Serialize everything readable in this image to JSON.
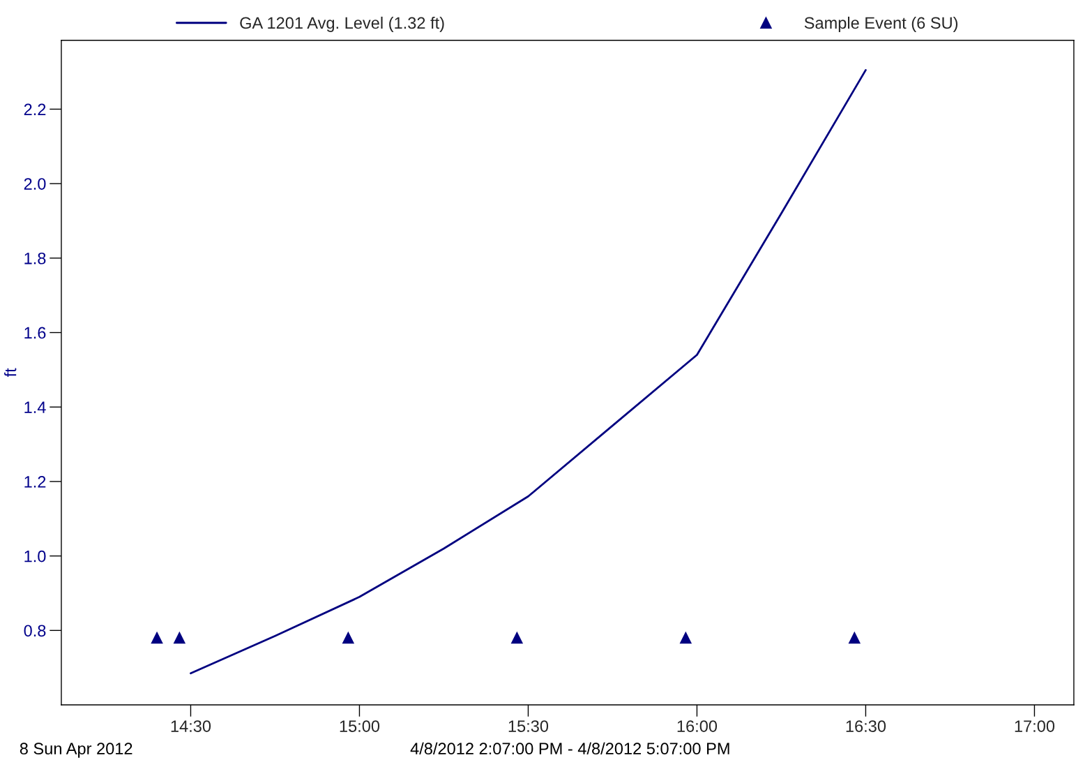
{
  "chart_data": {
    "type": "line",
    "ylabel": "ft",
    "annotations": [
      "8 Sun Apr 2012",
      "4/8/2012 2:07:00 PM - 4/8/2012 5:07:00 PM"
    ],
    "series": [
      {
        "name": "GA 1201 Avg. Level (1.32 ft)",
        "color": "#000080",
        "marker": "none",
        "x": [
          14.5,
          14.75,
          15.0,
          15.25,
          15.5,
          15.75,
          16.0,
          16.25,
          16.5
        ],
        "values": [
          0.685,
          0.785,
          0.89,
          1.02,
          1.16,
          1.35,
          1.54,
          1.92,
          2.305
        ]
      },
      {
        "name": "Sample Event (6 SU)",
        "type": "scatter",
        "color": "#000080",
        "marker": "triangle",
        "x": [
          14.4,
          14.4667,
          14.9667,
          15.4667,
          15.9667,
          16.4667
        ],
        "values": [
          0.78,
          0.78,
          0.78,
          0.78,
          0.78,
          0.78
        ]
      }
    ],
    "xlim": [
      14.1167,
      17.1167
    ],
    "xticks": [
      {
        "value": 14.5,
        "label": "14:30"
      },
      {
        "value": 15.0,
        "label": "15:00"
      },
      {
        "value": 15.5,
        "label": "15:30"
      },
      {
        "value": 16.0,
        "label": "16:00"
      },
      {
        "value": 16.5,
        "label": "16:30"
      },
      {
        "value": 17.0,
        "label": "17:00"
      }
    ],
    "ylim": [
      0.6,
      2.385
    ],
    "yticks": [
      {
        "value": 0.8,
        "label": "0.8"
      },
      {
        "value": 1.0,
        "label": "1.0"
      },
      {
        "value": 1.2,
        "label": "1.2"
      },
      {
        "value": 1.4,
        "label": "1.4"
      },
      {
        "value": 1.6,
        "label": "1.6"
      },
      {
        "value": 1.8,
        "label": "1.8"
      },
      {
        "value": 2.0,
        "label": "2.0"
      },
      {
        "value": 2.2,
        "label": "2.2"
      }
    ],
    "grid": false,
    "legend": "top"
  }
}
